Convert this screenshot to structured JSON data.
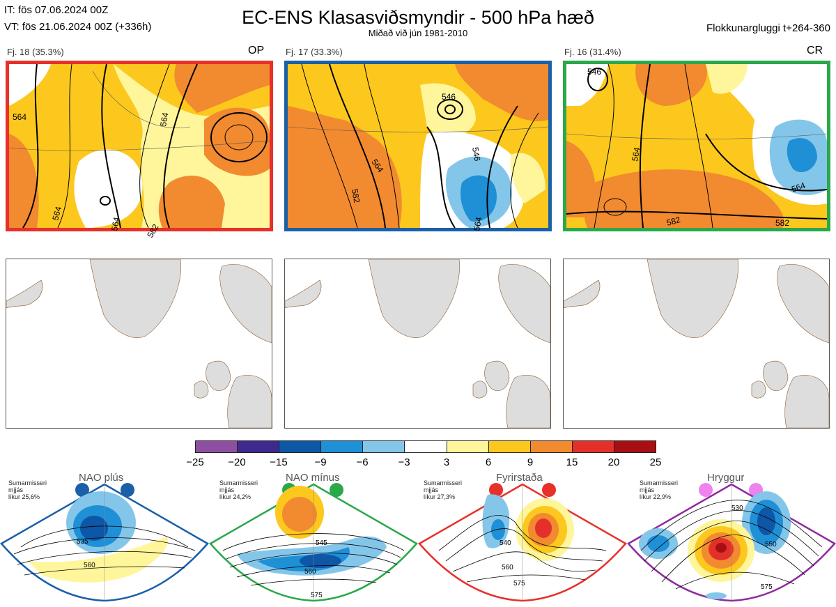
{
  "header": {
    "it_line": "IT: fös 07.06.2024 00Z",
    "vt_line": "VT: fös 21.06.2024 00Z  (+336h)",
    "title": "EC-ENS Klasasviðsmyndir - 500 hPa hæð",
    "subtitle": "Miðað við jún 1981-2010",
    "window": "Flokkunargluggi t+264-360"
  },
  "clusters": [
    {
      "label": "Fj. 18 (35.3%)",
      "tag": "OP",
      "border_color": "#e8302a",
      "contour_labels": [
        "564",
        "564",
        "564",
        "564",
        "582"
      ]
    },
    {
      "label": "Fj. 17 (33.3%)",
      "tag": "",
      "border_color": "#1a5fa8",
      "contour_labels": [
        "546",
        "546",
        "564",
        "582",
        "564"
      ]
    },
    {
      "label": "Fj. 16 (31.4%)",
      "tag": "CR",
      "border_color": "#2aa84a",
      "contour_labels": [
        "546",
        "564",
        "564",
        "582",
        "582"
      ]
    }
  ],
  "colorbar": {
    "colors": [
      "#8e4fa2",
      "#3e2a8c",
      "#0e56a6",
      "#1f8fd6",
      "#84c6ea",
      "#ffffff",
      "#fff59a",
      "#fcc81e",
      "#f28a30",
      "#e4302a",
      "#a80f14"
    ],
    "ticks": [
      "−25",
      "−20",
      "−15",
      "−9",
      "−6",
      "−3",
      "3",
      "6",
      "9",
      "15",
      "20",
      "25"
    ]
  },
  "regimes": [
    {
      "title": "NAO plús",
      "note": [
        "Sumarmisseri",
        "mjjás",
        "líkur 25,6%"
      ],
      "color": "#1a5fa8",
      "labels": [
        "535",
        "560"
      ]
    },
    {
      "title": "NAO mínus",
      "note": [
        "Sumarmisseri",
        "mjjás",
        "líkur 24,2%"
      ],
      "color": "#2aa84a",
      "labels": [
        "545",
        "560",
        "575"
      ]
    },
    {
      "title": "Fyrirstaða",
      "note": [
        "Sumarmisseri",
        "mjjás",
        "líkur 27,3%"
      ],
      "color": "#e8302a",
      "labels": [
        "540",
        "560",
        "575"
      ]
    },
    {
      "title": "Hryggur",
      "note": [
        "Sumarmisseri",
        "mjjás",
        "líkur 22,9%"
      ],
      "color": "#8e2a9e",
      "dot_color": "#ee82ee",
      "labels": [
        "530",
        "550",
        "575"
      ]
    }
  ]
}
